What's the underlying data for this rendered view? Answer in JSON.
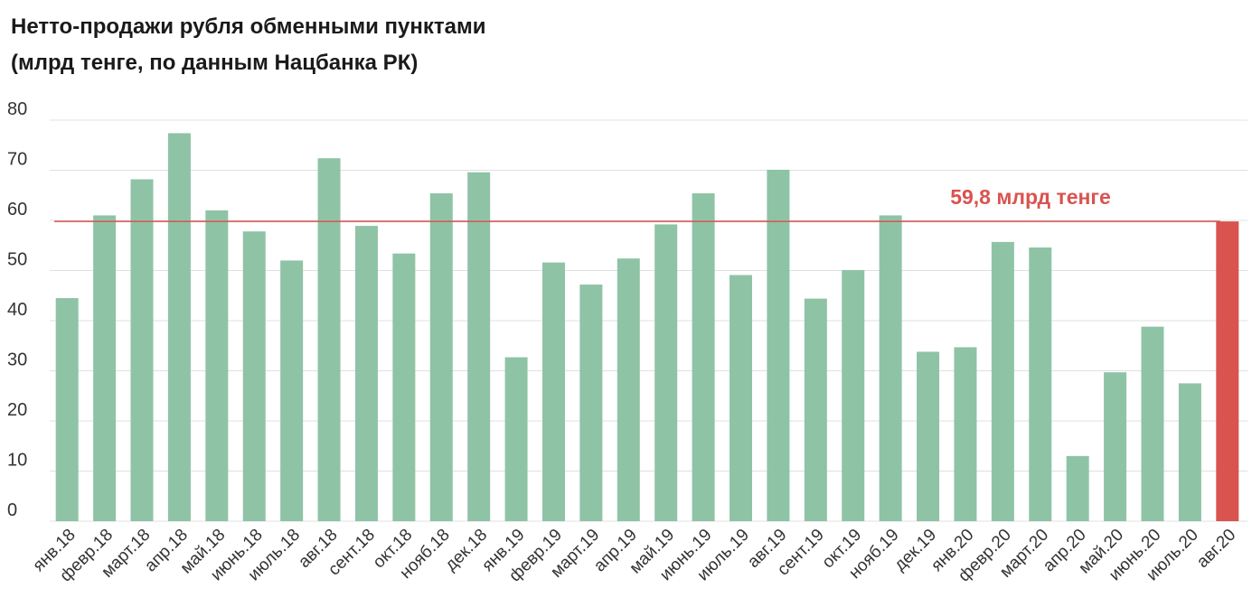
{
  "title_line1": "Нетто-продажи рубля обменными пунктами",
  "title_line2": "(млрд тенге, по данным Нацбанка РК)",
  "colors": {
    "bar": "#8fc3a6",
    "highlight": "#d9534f",
    "grid": "#e0e0e0",
    "reference_line": "#d9534f"
  },
  "chart_data": {
    "type": "bar",
    "title": "Нетто-продажи рубля обменными пунктами (млрд тенге, по данным Нацбанка РК)",
    "xlabel": "",
    "ylabel": "",
    "ylim": [
      0,
      80
    ],
    "yticks": [
      0,
      10,
      20,
      30,
      40,
      50,
      60,
      70,
      80
    ],
    "grid": true,
    "categories": [
      "янв.18",
      "февр.18",
      "март.18",
      "апр.18",
      "май.18",
      "июнь.18",
      "июль.18",
      "авг.18",
      "сент.18",
      "окт.18",
      "нояб.18",
      "дек.18",
      "янв.19",
      "февр.19",
      "март.19",
      "апр.19",
      "май.19",
      "июнь.19",
      "июль.19",
      "авг.19",
      "сент.19",
      "окт.19",
      "нояб.19",
      "дек.19",
      "янв.20",
      "февр.20",
      "март.20",
      "апр.20",
      "май.20",
      "июнь.20",
      "июль.20",
      "авг.20"
    ],
    "values": [
      44.5,
      61,
      68.2,
      77.4,
      62,
      57.8,
      52,
      72.4,
      58.9,
      53.4,
      65.4,
      69.6,
      32.7,
      51.6,
      47.2,
      52.4,
      59.2,
      65.4,
      49.1,
      70.1,
      44.4,
      50.1,
      61,
      33.8,
      34.7,
      55.7,
      54.6,
      13,
      29.7,
      38.8,
      27.5,
      59.8
    ],
    "highlight_index": 31,
    "reference_line": {
      "value": 59.8,
      "label": "59,8 млрд тенге"
    }
  }
}
